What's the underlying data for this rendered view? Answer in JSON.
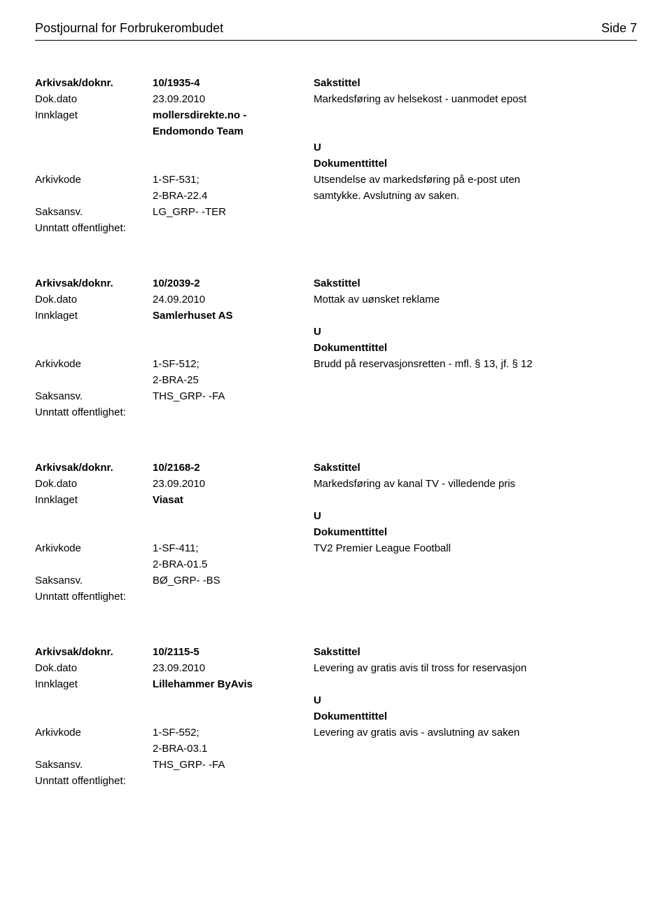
{
  "header": {
    "title": "Postjournal for Forbrukerombudet",
    "page": "Side 7"
  },
  "labels": {
    "arkivsak": "Arkivsak/doknr.",
    "dokdato": "Dok.dato",
    "innklaget": "Innklaget",
    "arkivkode": "Arkivkode",
    "saksansv": "Saksansv.",
    "unntatt": "Unntatt offentlighet:",
    "sakstittel": "Sakstittel",
    "dokumenttittel": "Dokumenttittel",
    "u": "U"
  },
  "entries": [
    {
      "arkivsak": "10/1935-4",
      "dokdato": "23.09.2010",
      "sakstittel": "Markedsføring av helsekost - uanmodet epost",
      "innklaget_lines": [
        "mollersdirekte.no -",
        "Endomondo Team"
      ],
      "arkivkode_lines": [
        "1-SF-531;",
        "2-BRA-22.4"
      ],
      "doktekst_lines": [
        "Utsendelse av markedsføring på e-post uten",
        "samtykke. Avslutning av saken."
      ],
      "saksansv": "LG_GRP- -TER"
    },
    {
      "arkivsak": "10/2039-2",
      "dokdato": "24.09.2010",
      "sakstittel": "Mottak av uønsket reklame",
      "innklaget_lines": [
        "Samlerhuset AS"
      ],
      "arkivkode_lines": [
        "1-SF-512;",
        "2-BRA-25"
      ],
      "doktekst_lines": [
        "Brudd på reservasjonsretten - mfl. § 13, jf. § 12"
      ],
      "saksansv": "THS_GRP- -FA"
    },
    {
      "arkivsak": "10/2168-2",
      "dokdato": "23.09.2010",
      "sakstittel": "Markedsføring av kanal TV - villedende pris",
      "innklaget_lines": [
        "Viasat"
      ],
      "arkivkode_lines": [
        "1-SF-411;",
        "2-BRA-01.5"
      ],
      "doktekst_lines": [
        "TV2 Premier League Football"
      ],
      "saksansv": "BØ_GRP- -BS"
    },
    {
      "arkivsak": "10/2115-5",
      "dokdato": "23.09.2010",
      "sakstittel": "Levering av gratis avis til tross for reservasjon",
      "innklaget_lines": [
        "Lillehammer ByAvis"
      ],
      "arkivkode_lines": [
        "1-SF-552;",
        "2-BRA-03.1"
      ],
      "doktekst_lines": [
        "Levering av gratis avis - avslutning av saken"
      ],
      "saksansv": "THS_GRP- -FA"
    }
  ]
}
